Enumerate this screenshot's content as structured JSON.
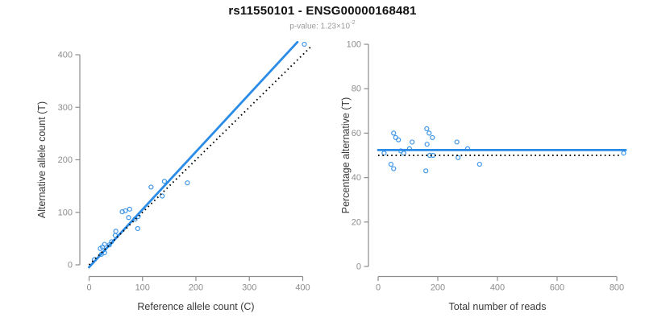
{
  "header": {
    "title": "rs11550101 - ENSG00000168481",
    "subtitle_prefix": "p-value: ",
    "subtitle_value": "1.23×10",
    "subtitle_exponent": "-2"
  },
  "colors": {
    "regression_blue": "#2b8ce8",
    "point_blue": "#3d95e8",
    "dotted_black": "#000000",
    "axis_gray": "#8d8d8d",
    "tick_label_gray": "#8d8d8d",
    "axis_title_color": "#3a3a3a",
    "title_color": "#111111",
    "subtitle_gray": "#9b9b9b",
    "background": "#ffffff"
  },
  "chart_data": [
    {
      "type": "scatter",
      "name": "allele-counts-scatter",
      "xlabel": "Reference allele count (C)",
      "ylabel": "Alternative allele count (T)",
      "xlim": [
        0,
        400
      ],
      "ylim": [
        0,
        400
      ],
      "xticks": [
        0,
        100,
        200,
        300,
        400
      ],
      "yticks": [
        0,
        100,
        200,
        300,
        400
      ],
      "grid": false,
      "marker": "open-circle",
      "points": [
        [
          10,
          10
        ],
        [
          23,
          20
        ],
        [
          29,
          23
        ],
        [
          21,
          31
        ],
        [
          25,
          34
        ],
        [
          29,
          39
        ],
        [
          38,
          38
        ],
        [
          42,
          44
        ],
        [
          49,
          56
        ],
        [
          50,
          64
        ],
        [
          62,
          101
        ],
        [
          68,
          103
        ],
        [
          74,
          90
        ],
        [
          76,
          106
        ],
        [
          86,
          87
        ],
        [
          91,
          69
        ],
        [
          92,
          92
        ],
        [
          116,
          148
        ],
        [
          137,
          131
        ],
        [
          141,
          159
        ],
        [
          184,
          156
        ],
        [
          403,
          420
        ]
      ],
      "lines": [
        {
          "name": "regression-line",
          "x1": 0,
          "y1": -4.5,
          "x2": 390,
          "y2": 424,
          "style": "solid",
          "color": "#2b8ce8"
        },
        {
          "name": "identity-line",
          "x1": 0,
          "y1": 0,
          "x2": 415,
          "y2": 415,
          "style": "dotted",
          "color": "#000000"
        }
      ]
    },
    {
      "type": "scatter",
      "name": "percentage-vs-reads-scatter",
      "xlabel": "Total number of reads",
      "ylabel": "Percentage alternative (T)",
      "xlim": [
        0,
        800
      ],
      "ylim": [
        0,
        100
      ],
      "xticks": [
        0,
        200,
        400,
        600,
        800
      ],
      "yticks": [
        0,
        20,
        40,
        60,
        80,
        100
      ],
      "grid": false,
      "marker": "open-circle",
      "points": [
        [
          20,
          51
        ],
        [
          43,
          46
        ],
        [
          52,
          44
        ],
        [
          52,
          60
        ],
        [
          59,
          58
        ],
        [
          68,
          57
        ],
        [
          76,
          52
        ],
        [
          86,
          51
        ],
        [
          105,
          53
        ],
        [
          114,
          56
        ],
        [
          160,
          43
        ],
        [
          163,
          62
        ],
        [
          164,
          55
        ],
        [
          171,
          60
        ],
        [
          173,
          50
        ],
        [
          182,
          58
        ],
        [
          184,
          50
        ],
        [
          264,
          56
        ],
        [
          268,
          49
        ],
        [
          300,
          53
        ],
        [
          340,
          46
        ],
        [
          823,
          51
        ]
      ],
      "lines": [
        {
          "name": "mean-percentage-line",
          "x1": 0,
          "y1": 52.4,
          "x2": 830,
          "y2": 52.4,
          "style": "solid",
          "color": "#2b8ce8"
        },
        {
          "name": "expected-50-line",
          "x1": 0,
          "y1": 50,
          "x2": 812,
          "y2": 50,
          "style": "dotted",
          "color": "#000000"
        }
      ]
    }
  ]
}
